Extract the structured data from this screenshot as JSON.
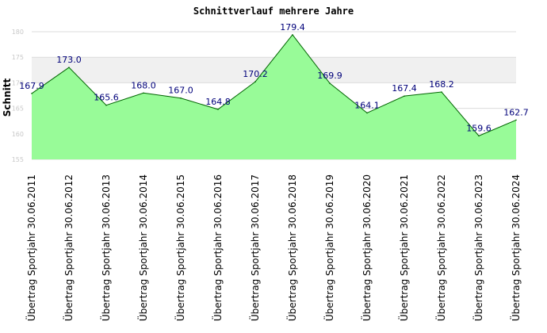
{
  "chart_data": {
    "type": "area",
    "title": "Schnittverlauf mehrere Jahre",
    "ylabel": "Schnitt",
    "xlabel": "",
    "ylim": [
      155,
      180
    ],
    "yticks": [
      155,
      160,
      165,
      170,
      175,
      180
    ],
    "grid": true,
    "categories": [
      "Übertrag Sportjahr 30.06.2011",
      "Übertrag Sportjahr 30.06.2012",
      "Übertrag Sportjahr 30.06.2013",
      "Übertrag Sportjahr 30.06.2014",
      "Übertrag Sportjahr 30.06.2015",
      "Übertrag Sportjahr 30.06.2016",
      "Übertrag Sportjahr 30.06.2017",
      "Übertrag Sportjahr 30.06.2018",
      "Übertrag Sportjahr 30.06.2019",
      "Übertrag Sportjahr 30.06.2020",
      "Übertrag Sportjahr 30.06.2021",
      "Übertrag Sportjahr 30.06.2022",
      "Übertrag Sportjahr 30.06.2023",
      "Übertrag Sportjahr 30.06.2024"
    ],
    "values": [
      167.9,
      173.0,
      165.6,
      168.0,
      167.0,
      164.8,
      170.2,
      179.4,
      169.9,
      164.1,
      167.4,
      168.2,
      159.6,
      162.7
    ],
    "data_labels": [
      "167.9",
      "173.0",
      "165.6",
      "168.0",
      "167.0",
      "164.8",
      "170.2",
      "179.4",
      "169.9",
      "164.1",
      "167.4",
      "168.2",
      "159.6",
      "162.7"
    ],
    "colors": {
      "fill": "#98fb98",
      "line": "#006400",
      "band": "#f0f0f0",
      "grid": "#dcdcdc",
      "label": "#00007a",
      "ytick": "#c8c8c8"
    }
  }
}
